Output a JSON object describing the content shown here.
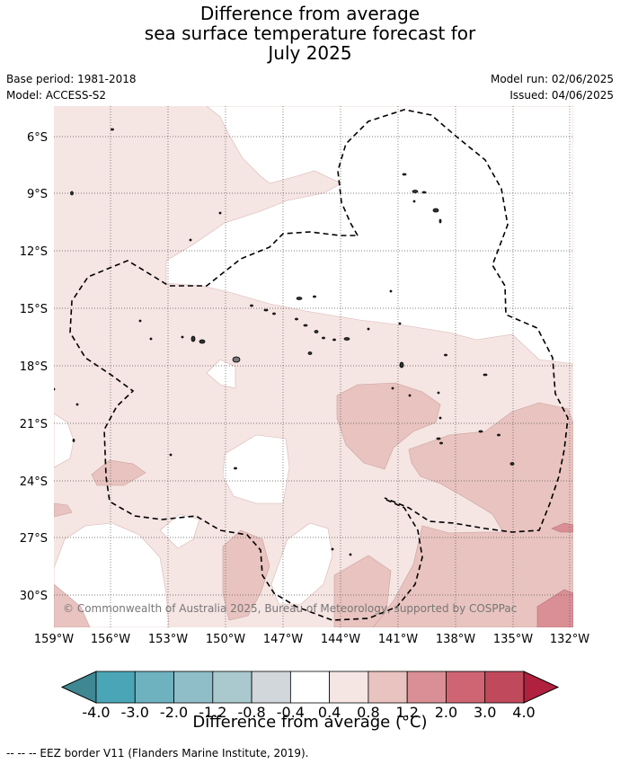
{
  "title": {
    "line1": "Difference from average",
    "line2": "sea surface temperature forecast for",
    "line3": "July 2025"
  },
  "meta": {
    "base_period": "Base period: 1981-2018",
    "model": "Model: ACCESS-S2",
    "model_run": "Model run: 02/06/2025",
    "issued": "Issued: 04/06/2025"
  },
  "map": {
    "lat_labels": [
      "6°S",
      "9°S",
      "12°S",
      "15°S",
      "18°S",
      "21°S",
      "24°S",
      "27°S",
      "30°S"
    ],
    "lon_labels": [
      "159°W",
      "156°W",
      "153°W",
      "150°W",
      "147°W",
      "144°W",
      "141°W",
      "138°W",
      "135°W",
      "132°W"
    ],
    "copyright": "© Commonwealth of Australia 2025, Bureau of Meteorology, supported by COSPPac"
  },
  "colorbar": {
    "title": "Difference from average (°C)",
    "tick_labels": [
      "-4.0",
      "-3.0",
      "-2.0",
      "-1.2",
      "-0.8",
      "-0.4",
      "0.4",
      "0.8",
      "1.2",
      "2.0",
      "3.0",
      "4.0"
    ],
    "colors": [
      "#3e8793",
      "#4aa6b6",
      "#6eb1bf",
      "#8fbdc8",
      "#a9c9ce",
      "#d1d7da",
      "#ffffff",
      "#f5e5e3",
      "#e8c3bf",
      "#d98f95",
      "#cf6573",
      "#c04a5c",
      "#b0203f"
    ]
  },
  "footer": {
    "eez_note": "--  --  -- EEZ border V11 (Flanders Marine Institute, 2019)."
  }
}
